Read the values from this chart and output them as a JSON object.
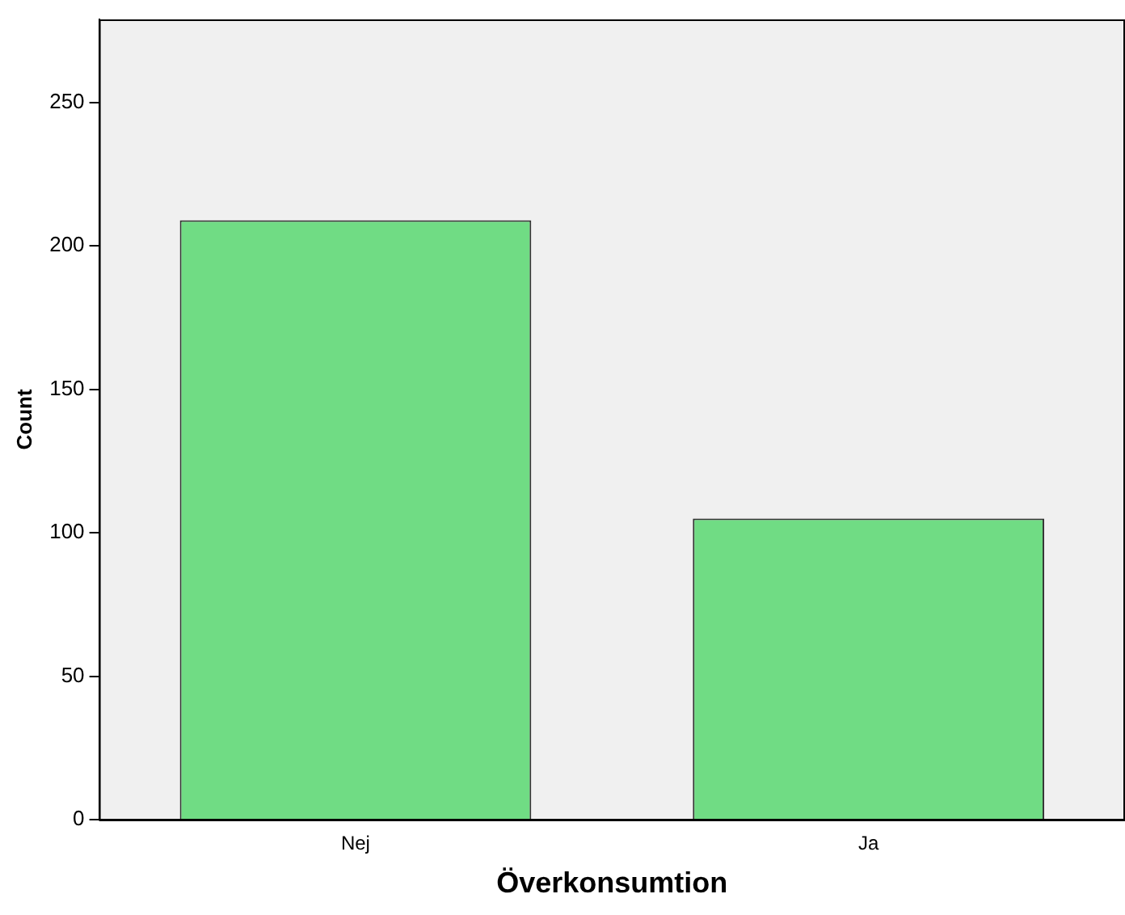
{
  "chart_data": {
    "type": "bar",
    "xlabel": "Överkonsumtion",
    "ylabel": "Count",
    "categories": [
      "Nej",
      "Ja"
    ],
    "values": [
      209,
      105
    ],
    "color": "#70dc84",
    "ylim": [
      0,
      279
    ],
    "yticks": [
      0,
      50,
      100,
      150,
      200,
      250
    ],
    "grid": false,
    "legend": false
  }
}
